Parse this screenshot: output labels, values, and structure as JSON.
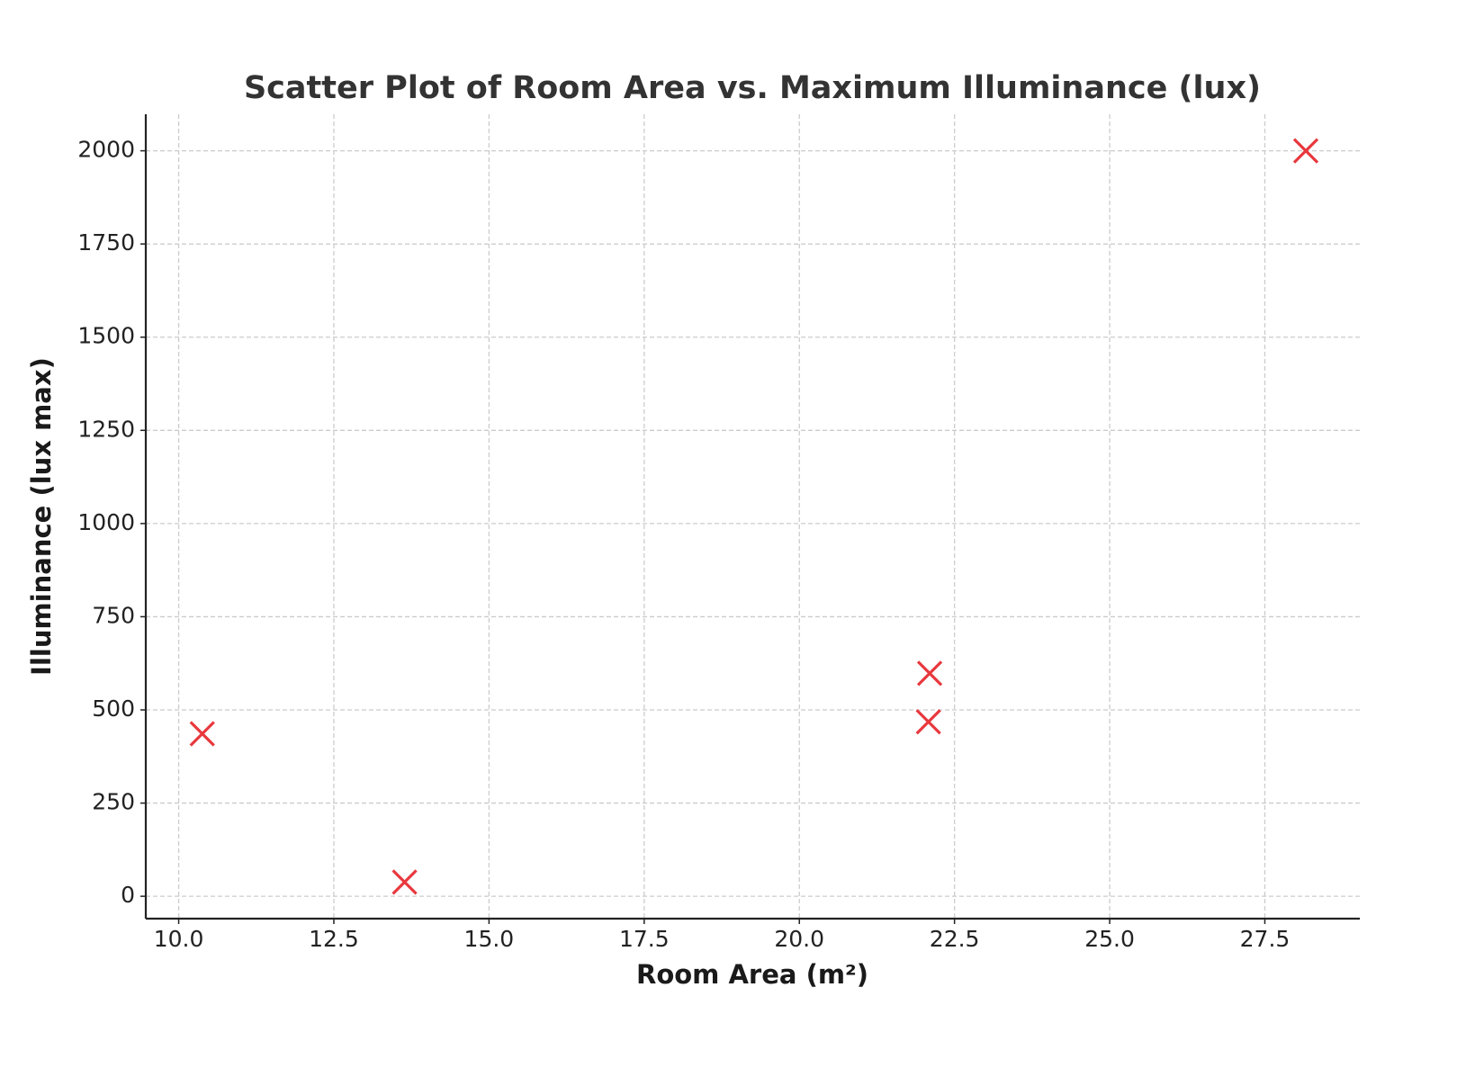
{
  "chart_data": {
    "type": "scatter",
    "title": "Scatter Plot of Room Area vs. Maximum Illuminance (lux)",
    "x_label": "Room Area (m²)",
    "y_label": "Illuminance (lux max)",
    "x": [
      10.38,
      13.64,
      22.1,
      22.08,
      28.16
    ],
    "values": [
      436,
      38,
      598,
      468,
      2000
    ],
    "color": "#e8383d",
    "marker": "x",
    "xlim": [
      9.47,
      29.03
    ],
    "xticks": [
      {
        "value": 10,
        "label": "10.0"
      },
      12.5,
      {
        "value": 15,
        "label": "15.0"
      },
      17.5,
      {
        "value": 20,
        "label": "20.0"
      },
      22.5,
      {
        "value": 25,
        "label": "25.0"
      },
      27.5
    ],
    "ylim": [
      -60,
      2098
    ],
    "yticks": [
      0,
      250,
      500,
      750,
      1000,
      1250,
      1500,
      1750,
      2000
    ],
    "grid": true
  }
}
